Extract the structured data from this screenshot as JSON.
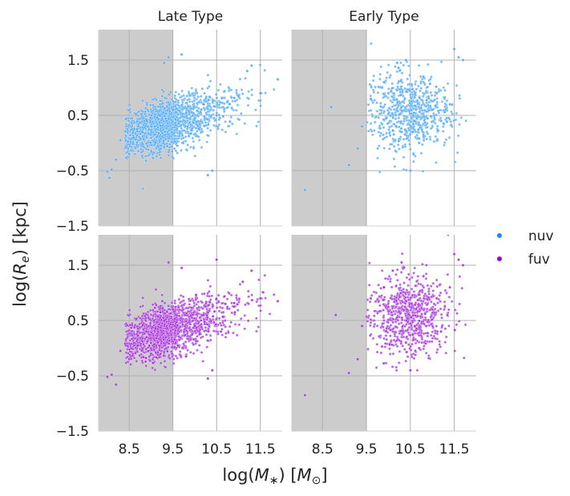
{
  "chart_data": {
    "type": "scatter",
    "layout": "facet grid 2 rows x 2 columns, shared axes",
    "columns": [
      "Late Type",
      "Early Type"
    ],
    "rows": [
      "nuv",
      "fuv"
    ],
    "xlabel": "log(M∗) [M⊙]",
    "ylabel": "log(Re) [kpc]",
    "xlim": [
      7.8,
      12.0
    ],
    "ylim": [
      -1.5,
      2.05
    ],
    "xticks": [
      8.5,
      9.5,
      10.5,
      11.5
    ],
    "xtick_labels": [
      "8.5",
      "9.5",
      "10.5",
      "11.5"
    ],
    "yticks": [
      -1.5,
      -0.5,
      0.5,
      1.5
    ],
    "ytick_labels": [
      "−1.5",
      "−0.5",
      "0.5",
      "1.5"
    ],
    "grid": true,
    "shaded_region": {
      "x_from": 7.8,
      "x_to": 9.5,
      "color": "#cccccc"
    },
    "legend": {
      "placement": "right",
      "entries": [
        {
          "label": "nuv",
          "color": "#1e88e5"
        },
        {
          "label": "fuv",
          "color": "#9c00d8"
        }
      ]
    },
    "series_colors": {
      "nuv": "#4aa6f5",
      "fuv": "#a12ad8"
    },
    "panels": [
      {
        "row": "nuv",
        "col": "Late Type",
        "points": [
          [
            8.0,
            -0.52
          ],
          [
            8.1,
            -0.48
          ],
          [
            8.05,
            -0.63
          ],
          [
            8.2,
            -0.3
          ],
          [
            8.3,
            0.05
          ],
          [
            8.5,
            -0.2
          ],
          [
            8.6,
            0.1
          ],
          [
            8.8,
            0.2
          ],
          [
            9.0,
            0.3
          ],
          [
            9.2,
            0.5
          ],
          [
            9.3,
            1.45
          ],
          [
            9.4,
            1.55
          ],
          [
            9.5,
            0.6
          ],
          [
            9.6,
            -0.05
          ],
          [
            9.7,
            1.6
          ],
          [
            9.8,
            0.55
          ],
          [
            10.0,
            0.45
          ],
          [
            10.2,
            0.7
          ],
          [
            10.3,
            -0.58
          ],
          [
            10.4,
            -0.5
          ],
          [
            10.5,
            0.5
          ],
          [
            10.8,
            0.7
          ],
          [
            11.0,
            0.85
          ],
          [
            11.2,
            1.3
          ],
          [
            11.3,
            1.4
          ],
          [
            11.5,
            0.9
          ],
          [
            11.9,
            1.15
          ],
          [
            9.1,
            0.0
          ],
          [
            8.9,
            0.4
          ],
          [
            10.1,
            0.25
          ]
        ]
      },
      {
        "row": "nuv",
        "col": "Early Type",
        "points": [
          [
            8.1,
            -0.85
          ],
          [
            8.7,
            0.65
          ],
          [
            9.1,
            -0.4
          ],
          [
            9.3,
            -0.1
          ],
          [
            9.4,
            0.3
          ],
          [
            9.6,
            0.8
          ],
          [
            9.9,
            1.1
          ],
          [
            10.0,
            0.9
          ],
          [
            10.2,
            1.45
          ],
          [
            10.4,
            1.5
          ],
          [
            10.5,
            -0.5
          ],
          [
            10.6,
            0.4
          ],
          [
            10.8,
            1.2
          ],
          [
            11.0,
            0.6
          ],
          [
            11.2,
            0.4
          ],
          [
            11.4,
            0.7
          ],
          [
            11.5,
            1.7
          ],
          [
            11.6,
            1.55
          ],
          [
            11.7,
            1.5
          ],
          [
            10.3,
            0.2
          ],
          [
            10.7,
            0.0
          ],
          [
            11.1,
            0.9
          ]
        ]
      },
      {
        "row": "fuv",
        "col": "Late Type",
        "points": [
          [
            8.0,
            -0.52
          ],
          [
            8.1,
            -0.48
          ],
          [
            8.2,
            -0.66
          ],
          [
            8.3,
            -0.05
          ],
          [
            8.5,
            -0.2
          ],
          [
            8.7,
            0.05
          ],
          [
            8.9,
            0.2
          ],
          [
            9.1,
            0.35
          ],
          [
            9.3,
            0.5
          ],
          [
            9.4,
            1.55
          ],
          [
            9.5,
            0.7
          ],
          [
            9.7,
            1.45
          ],
          [
            9.8,
            -0.15
          ],
          [
            10.0,
            0.4
          ],
          [
            10.2,
            0.6
          ],
          [
            10.3,
            -0.55
          ],
          [
            10.4,
            -0.4
          ],
          [
            10.5,
            1.6
          ],
          [
            10.7,
            0.8
          ],
          [
            10.9,
            0.75
          ],
          [
            11.1,
            1.2
          ],
          [
            11.3,
            1.4
          ],
          [
            11.5,
            0.9
          ],
          [
            11.9,
            0.85
          ],
          [
            9.0,
            -0.1
          ],
          [
            10.6,
            0.3
          ]
        ]
      },
      {
        "row": "fuv",
        "col": "Early Type",
        "points": [
          [
            8.1,
            -0.85
          ],
          [
            8.8,
            0.6
          ],
          [
            9.1,
            -0.45
          ],
          [
            9.3,
            -0.2
          ],
          [
            9.4,
            0.4
          ],
          [
            9.6,
            0.9
          ],
          [
            9.9,
            1.1
          ],
          [
            10.1,
            1.4
          ],
          [
            10.3,
            1.55
          ],
          [
            10.5,
            -0.4
          ],
          [
            10.6,
            0.4
          ],
          [
            10.8,
            1.3
          ],
          [
            11.0,
            0.7
          ],
          [
            11.2,
            0.3
          ],
          [
            11.4,
            1.1
          ],
          [
            11.5,
            1.7
          ],
          [
            11.6,
            1.6
          ],
          [
            11.7,
            1.5
          ],
          [
            10.4,
            0.1
          ],
          [
            10.7,
            0.0
          ],
          [
            11.1,
            0.9
          ]
        ]
      }
    ]
  }
}
